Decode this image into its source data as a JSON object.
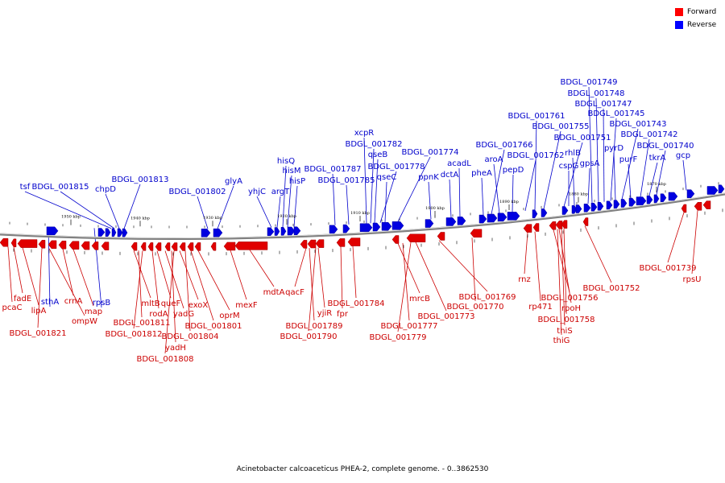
{
  "caption": "Acinetobacter calcoaceticus PHEA-2, complete genome. - 0..3862530",
  "legend": [
    {
      "label": "Forward",
      "color": "#ff0000"
    },
    {
      "label": "Reverse",
      "color": "#0000ff"
    }
  ],
  "colors": {
    "forward": "#e00000",
    "reverse": "#0000e0",
    "axis": "#808080"
  },
  "ticks": [
    "1950 kbp",
    "1940 kbp",
    "1930 kbp",
    "1920 kbp",
    "1910 kbp",
    "1900 kbp",
    "1890 kbp",
    "1880 kbp",
    "1870 kbp"
  ],
  "reverse_labels": [
    "tsf",
    "BDGL_001815",
    "chpD",
    "BDGL_001813",
    "BDGL_001802",
    "glyA",
    "yhjC",
    "argT",
    "hisQ",
    "hisM",
    "hisP",
    "BDGL_001787",
    "BDGL_001785",
    "xcpR",
    "BDGL_001782",
    "qseB",
    "BDGL_001778",
    "qseC",
    "BDGL_001774",
    "ppnK",
    "dctA",
    "acadL",
    "pheA",
    "BDGL_001766",
    "aroA",
    "pepD",
    "BDGL_001762",
    "BDGL_001761",
    "BDGL_001755",
    "BDGL_001751",
    "cspG",
    "rhlB",
    "gpsA",
    "BDGL_001749",
    "BDGL_001748",
    "BDGL_001747",
    "BDGL_001745",
    "pyrD",
    "BDGL_001743",
    "purF",
    "BDGL_001742",
    "tkrA",
    "BDGL_001740",
    "gcp",
    "sthA",
    "rpsB"
  ],
  "forward_labels": [
    "pcaC",
    "fadE",
    "lipA",
    "BDGL_001821",
    "ompW",
    "crnA",
    "map",
    "mltB",
    "BDGL_001811",
    "BDGL_001812",
    "rodA",
    "queF",
    "yadG",
    "yadH",
    "BDGL_001808",
    "exoX",
    "BDGL_001804",
    "BDGL_001801",
    "oprM",
    "mexF",
    "mdtA",
    "qacF",
    "BDGL_001789",
    "BDGL_001790",
    "yjiR",
    "fpr",
    "BDGL_001784",
    "mrcB",
    "BDGL_001777",
    "BDGL_001779",
    "BDGL_001773",
    "BDGL_001769",
    "BDGL_001770",
    "rnz",
    "rp471",
    "BDGL_001756",
    "rpoH",
    "BDGL_001758",
    "thiS",
    "thiG",
    "BDGL_001752",
    "BDGL_001739",
    "rpsU"
  ]
}
